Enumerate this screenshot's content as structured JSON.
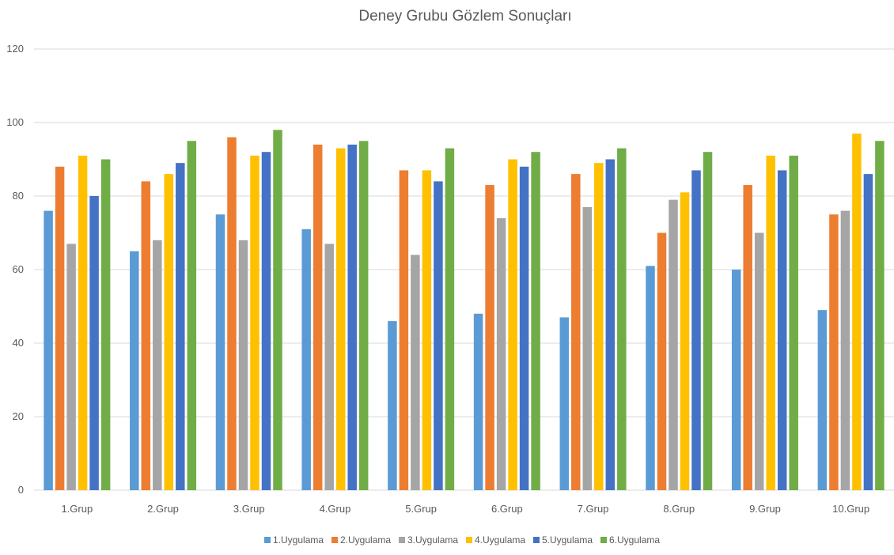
{
  "chart_data": {
    "type": "bar",
    "title": "Deney Grubu Gözlem Sonuçları",
    "xlabel": "",
    "ylabel": "",
    "ylim": [
      0,
      120
    ],
    "yticks": [
      "0",
      "20",
      "40",
      "60",
      "80",
      "100",
      "120"
    ],
    "grid": true,
    "legend_position": "bottom",
    "categories": [
      "1.Grup",
      "2.Grup",
      "3.Grup",
      "4.Grup",
      "5.Grup",
      "6.Grup",
      "7.Grup",
      "8.Grup",
      "9.Grup",
      "10.Grup"
    ],
    "series": [
      {
        "name": "1.Uygulama",
        "color": "#5b9bd5",
        "values": [
          76,
          65,
          75,
          71,
          46,
          48,
          47,
          61,
          60,
          49
        ]
      },
      {
        "name": "2.Uygulama",
        "color": "#ed7d31",
        "values": [
          88,
          84,
          96,
          94,
          87,
          83,
          86,
          70,
          83,
          75
        ]
      },
      {
        "name": "3.Uygulama",
        "color": "#a5a5a5",
        "values": [
          67,
          68,
          68,
          67,
          64,
          74,
          77,
          79,
          70,
          76
        ]
      },
      {
        "name": "4.Uygulama",
        "color": "#ffc000",
        "values": [
          91,
          86,
          91,
          93,
          87,
          90,
          89,
          81,
          91,
          97
        ]
      },
      {
        "name": "5.Uygulama",
        "color": "#4472c4",
        "values": [
          80,
          89,
          92,
          94,
          84,
          88,
          90,
          87,
          87,
          86
        ]
      },
      {
        "name": "6.Uygulama",
        "color": "#70ad47",
        "values": [
          90,
          95,
          98,
          95,
          93,
          92,
          93,
          92,
          91,
          95
        ]
      }
    ]
  }
}
